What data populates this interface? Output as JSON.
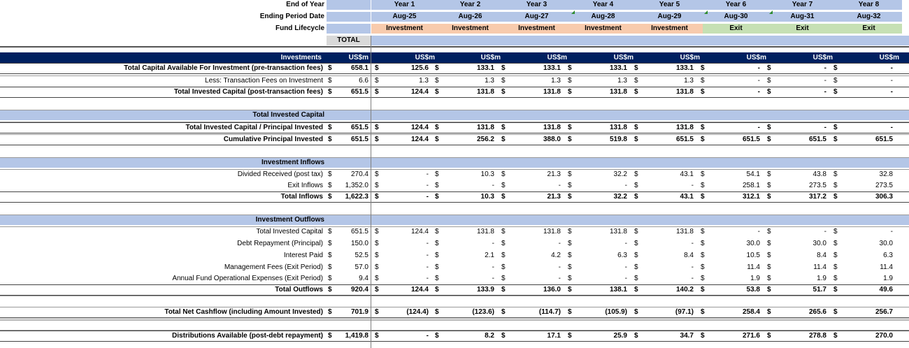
{
  "header": {
    "end_of_year_label": "End of Year",
    "ending_period_label": "Ending Period Date",
    "fund_lifecycle_label": "Fund Lifecycle",
    "total_label": "TOTAL",
    "years": [
      "Year 1",
      "Year 2",
      "Year 3",
      "Year 4",
      "Year 5",
      "Year 6",
      "Year 7",
      "Year 8"
    ],
    "dates": [
      "Aug-25",
      "Aug-26",
      "Aug-27",
      "Aug-28",
      "Aug-29",
      "Aug-30",
      "Aug-31",
      "Aug-32"
    ],
    "phases": [
      "Investment",
      "Investment",
      "Investment",
      "Investment",
      "Investment",
      "Exit",
      "Exit",
      "Exit"
    ]
  },
  "band": {
    "label": "Investments",
    "unit": "US$m"
  },
  "sections": {
    "invested_capital": "Total Invested Capital",
    "inflows": "Investment Inflows",
    "outflows": "Investment Outflows"
  },
  "rows": [
    {
      "label": "Total Capital Available For Investment (pre-transaction fees)",
      "total": "658.1",
      "vals": [
        "125.6",
        "133.1",
        "133.1",
        "133.1",
        "133.1",
        "-",
        "-",
        "-"
      ]
    },
    {
      "label": "Less: Transaction Fees on Investment",
      "total": "6.6",
      "vals": [
        "1.3",
        "1.3",
        "1.3",
        "1.3",
        "1.3",
        "-",
        "-",
        "-"
      ]
    },
    {
      "label": "Total Invested Capital (post-transaction fees)",
      "total": "651.5",
      "vals": [
        "124.4",
        "131.8",
        "131.8",
        "131.8",
        "131.8",
        "-",
        "-",
        "-"
      ]
    },
    {
      "label": "Total Invested Capital / Principal Invested",
      "total": "651.5",
      "vals": [
        "124.4",
        "131.8",
        "131.8",
        "131.8",
        "131.8",
        "-",
        "-",
        "-"
      ]
    },
    {
      "label": "Cumulative Principal Invested",
      "total": "651.5",
      "vals": [
        "124.4",
        "256.2",
        "388.0",
        "519.8",
        "651.5",
        "651.5",
        "651.5",
        "651.5"
      ]
    },
    {
      "label": "Divided Received (post tax)",
      "total": "270.4",
      "vals": [
        "-",
        "10.3",
        "21.3",
        "32.2",
        "43.1",
        "54.1",
        "43.8",
        "32.8"
      ]
    },
    {
      "label": "Exit Inflows",
      "total": "1,352.0",
      "vals": [
        "-",
        "-",
        "-",
        "-",
        "-",
        "258.1",
        "273.5",
        "273.5"
      ]
    },
    {
      "label": "Total Inflows",
      "total": "1,622.3",
      "vals": [
        "-",
        "10.3",
        "21.3",
        "32.2",
        "43.1",
        "312.1",
        "317.2",
        "306.3"
      ]
    },
    {
      "label": "Total Invested Capital",
      "total": "651.5",
      "vals": [
        "124.4",
        "131.8",
        "131.8",
        "131.8",
        "131.8",
        "-",
        "-",
        "-"
      ]
    },
    {
      "label": "Debt Repayment (Principal)",
      "total": "150.0",
      "vals": [
        "-",
        "-",
        "-",
        "-",
        "-",
        "30.0",
        "30.0",
        "30.0"
      ]
    },
    {
      "label": "Interest Paid",
      "total": "52.5",
      "vals": [
        "-",
        "2.1",
        "4.2",
        "6.3",
        "8.4",
        "10.5",
        "8.4",
        "6.3"
      ]
    },
    {
      "label": "Management Fees (Exit Period)",
      "total": "57.0",
      "vals": [
        "-",
        "-",
        "-",
        "-",
        "-",
        "11.4",
        "11.4",
        "11.4"
      ]
    },
    {
      "label": "Annual Fund Operational Expenses (Exit Period)",
      "total": "9.4",
      "vals": [
        "-",
        "-",
        "-",
        "-",
        "-",
        "1.9",
        "1.9",
        "1.9"
      ]
    },
    {
      "label": "Total Outflows",
      "total": "920.4",
      "vals": [
        "124.4",
        "133.9",
        "136.0",
        "138.1",
        "140.2",
        "53.8",
        "51.7",
        "49.6"
      ]
    },
    {
      "label": "Total Net Cashflow (including Amount Invested)",
      "total": "701.9",
      "vals": [
        "(124.4)",
        "(123.6)",
        "(114.7)",
        "(105.9)",
        "(97.1)",
        "258.4",
        "265.6",
        "256.7"
      ]
    },
    {
      "label": "Distributions Available (post-debt repayment)",
      "total": "1,419.8",
      "vals": [
        "-",
        "8.2",
        "17.1",
        "25.9",
        "34.7",
        "271.6",
        "278.8",
        "270.0"
      ]
    }
  ],
  "currency": "$"
}
